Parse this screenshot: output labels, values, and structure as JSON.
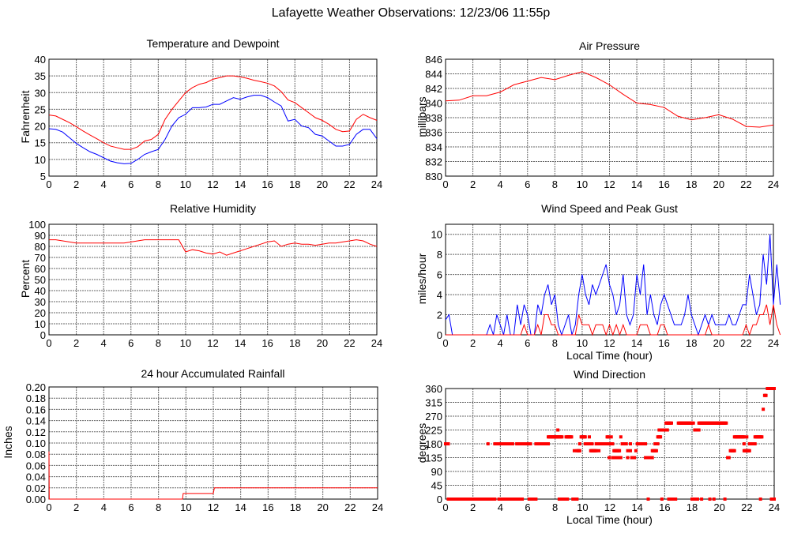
{
  "title": "Lafayette Weather Observations: 12/23/06 11:55p",
  "chart_data": [
    {
      "type": "line",
      "title": "Temperature and Dewpoint",
      "ylabel": "Fahrenheit",
      "xlabel": "",
      "xlim": [
        0,
        24
      ],
      "xticks": [
        0,
        2,
        4,
        6,
        8,
        10,
        12,
        14,
        16,
        18,
        20,
        22,
        24
      ],
      "ylim": [
        5,
        40
      ],
      "yticks": [
        5,
        10,
        15,
        20,
        25,
        30,
        35,
        40
      ],
      "ydecimals": 0,
      "grid": true,
      "x_step_hours": 0.5,
      "series": [
        {
          "color": "#ff0000",
          "values": [
            23.3,
            23,
            22,
            21,
            19.8,
            18.5,
            17.3,
            16.2,
            15,
            14,
            13.5,
            13,
            13,
            13.8,
            15.5,
            16,
            17.5,
            22,
            25,
            27.5,
            30,
            31.5,
            32.5,
            33,
            34,
            34.5,
            35,
            35,
            34.7,
            34.3,
            33.7,
            33.3,
            32.8,
            32,
            30.3,
            27.8,
            27,
            25.5,
            24,
            22.5,
            21.7,
            20.5,
            19,
            18.3,
            18.5,
            22,
            23.5,
            22.5,
            21.7
          ]
        },
        {
          "color": "#0000ff",
          "values": [
            19.2,
            19,
            18.2,
            16.5,
            14.8,
            13.5,
            12.3,
            11.5,
            10.5,
            9.5,
            9,
            8.7,
            8.8,
            10,
            11.5,
            12.3,
            13,
            16,
            20,
            22.5,
            23.5,
            25.5,
            25.5,
            25.7,
            26.5,
            26.5,
            27.5,
            28.5,
            28,
            28.7,
            29.2,
            29.2,
            28.5,
            27.2,
            26,
            21.5,
            22,
            20,
            19.5,
            17.5,
            17,
            15.5,
            14,
            14,
            14.5,
            17.5,
            19,
            19,
            16.2
          ]
        }
      ]
    },
    {
      "type": "line",
      "title": "Air Pressure",
      "ylabel": "millibars",
      "xlabel": "",
      "xlim": [
        0,
        24
      ],
      "xticks": [
        0,
        2,
        4,
        6,
        8,
        10,
        12,
        14,
        16,
        18,
        20,
        22,
        24
      ],
      "ylim": [
        830,
        846
      ],
      "yticks": [
        830,
        832,
        834,
        836,
        838,
        840,
        842,
        844,
        846
      ],
      "ydecimals": 0,
      "grid": true,
      "x_step_hours": 1,
      "series": [
        {
          "color": "#ff0000",
          "values": [
            840.3,
            840.4,
            841,
            841,
            841.5,
            842.5,
            843,
            843.5,
            843.2,
            843.8,
            844.3,
            843.5,
            842.5,
            841.2,
            840,
            839.8,
            839.4,
            838.2,
            837.7,
            838,
            838.4,
            837.8,
            836.8,
            836.7,
            837
          ]
        }
      ]
    },
    {
      "type": "line",
      "title": "Relative Humidity",
      "ylabel": "Percent",
      "xlabel": "",
      "xlim": [
        0,
        24
      ],
      "xticks": [
        0,
        2,
        4,
        6,
        8,
        10,
        12,
        14,
        16,
        18,
        20,
        22,
        24
      ],
      "ylim": [
        0,
        100
      ],
      "yticks": [
        0,
        10,
        20,
        30,
        40,
        50,
        60,
        70,
        80,
        90,
        100
      ],
      "ydecimals": 0,
      "grid": true,
      "x_step_hours": 0.5,
      "series": [
        {
          "color": "#ff0000",
          "values": [
            86,
            86,
            85,
            84,
            83,
            83,
            83,
            83,
            83,
            83,
            83,
            83,
            84,
            85,
            86,
            86,
            86,
            86,
            86,
            86,
            75,
            77,
            76,
            74,
            73,
            75,
            72,
            74,
            76,
            78,
            80,
            82,
            84,
            85,
            80,
            82,
            83,
            82,
            82,
            81,
            82,
            83,
            83,
            84,
            85,
            86,
            85,
            82,
            80
          ]
        }
      ]
    },
    {
      "type": "line",
      "title": "Wind Speed and Peak Gust",
      "ylabel": "miles/hour",
      "xlabel": "Local Time (hour)",
      "xlim": [
        0,
        24
      ],
      "xticks": [
        0,
        2,
        4,
        6,
        8,
        10,
        12,
        14,
        16,
        18,
        20,
        22,
        24
      ],
      "ylim": [
        0,
        11
      ],
      "yticks": [
        0,
        2,
        4,
        6,
        8,
        10
      ],
      "ydecimals": 0,
      "grid": true,
      "x_step_hours": 0.25,
      "series": [
        {
          "color": "#0000ff",
          "values": [
            1.5,
            2,
            0,
            0,
            0,
            0,
            0,
            0,
            0,
            0,
            0,
            0,
            0,
            1,
            0,
            2,
            1,
            0,
            2,
            0,
            0,
            3,
            1,
            3,
            2,
            0,
            0,
            3,
            2,
            4,
            5,
            3,
            4,
            1,
            0,
            1,
            2,
            0,
            1,
            4,
            6,
            4,
            3,
            5,
            4,
            5,
            6,
            7,
            5,
            4,
            2,
            3,
            6,
            2,
            1,
            2,
            6,
            4,
            7,
            2,
            4,
            2,
            1,
            3,
            4,
            3,
            2,
            1,
            1,
            1,
            2,
            4,
            2,
            1,
            0,
            1,
            2,
            1,
            2,
            1,
            1,
            1,
            1,
            2,
            1,
            1,
            2,
            3,
            3,
            6,
            4,
            2,
            3,
            8,
            5,
            10,
            3,
            7,
            3
          ]
        },
        {
          "color": "#ff0000",
          "values": [
            0,
            0,
            0,
            0,
            0,
            0,
            0,
            0,
            0,
            0,
            0,
            0,
            0,
            0,
            0,
            0,
            0,
            0,
            0,
            0,
            0,
            0,
            0,
            1,
            0,
            0,
            0,
            1,
            0,
            2,
            2,
            1,
            1,
            0,
            0,
            0,
            0,
            0,
            0,
            2,
            1,
            1,
            1,
            0,
            1,
            1,
            1,
            0,
            1,
            0,
            1,
            0,
            1,
            0,
            0,
            0,
            0,
            1,
            1,
            1,
            0,
            0,
            0,
            1,
            1,
            0,
            0,
            0,
            0,
            0,
            0,
            0,
            0,
            0,
            0,
            0,
            0,
            1,
            0,
            0,
            0,
            0,
            0,
            0,
            0,
            0,
            0,
            0,
            1,
            0,
            1,
            1,
            2,
            2,
            3,
            1,
            3,
            1,
            0
          ]
        }
      ]
    },
    {
      "type": "line",
      "title": "24 hour Accumulated Rainfall",
      "ylabel": "Inches",
      "xlabel": "",
      "xlim": [
        0,
        24
      ],
      "xticks": [
        0,
        2,
        4,
        6,
        8,
        10,
        12,
        14,
        16,
        18,
        20,
        22,
        24
      ],
      "ylim": [
        0,
        0.2
      ],
      "yticks": [
        0,
        0.02,
        0.04,
        0.06,
        0.08,
        0.1,
        0.12,
        0.14,
        0.16,
        0.18,
        0.2
      ],
      "ydecimals": 2,
      "grid": true,
      "series": [
        {
          "color": "#ff0000",
          "points": [
            [
              0,
              0.085
            ],
            [
              0.02,
              0
            ],
            [
              9.75,
              0
            ],
            [
              9.8,
              0.01
            ],
            [
              12,
              0.01
            ],
            [
              12.08,
              0.02
            ],
            [
              24,
              0.02
            ]
          ]
        }
      ]
    },
    {
      "type": "scatter",
      "title": "Wind Direction",
      "ylabel": "degrees",
      "xlabel": "Local Time (hour)",
      "xlim": [
        0,
        24
      ],
      "xticks": [
        0,
        2,
        4,
        6,
        8,
        10,
        12,
        14,
        16,
        18,
        20,
        22,
        24
      ],
      "ylim": [
        0,
        360
      ],
      "yticks": [
        0,
        45,
        90,
        135,
        180,
        225,
        270,
        315,
        360
      ],
      "ydecimals": 0,
      "grid": true,
      "color": "#ff0000",
      "runs": [
        [
          0,
          0.2,
          180
        ],
        [
          0.2,
          3.6,
          0
        ],
        [
          3.1,
          3.1,
          180
        ],
        [
          3.6,
          4.2,
          180
        ],
        [
          3.9,
          4.3,
          0
        ],
        [
          4.3,
          4.6,
          180
        ],
        [
          4.5,
          4.8,
          0
        ],
        [
          4.7,
          4.9,
          180
        ],
        [
          5.0,
          5.4,
          0
        ],
        [
          5.2,
          5.4,
          180
        ],
        [
          5.4,
          5.6,
          0
        ],
        [
          5.6,
          6.2,
          180
        ],
        [
          6.1,
          6.6,
          0
        ],
        [
          6.6,
          7.5,
          180
        ],
        [
          7.5,
          8.5,
          202.5
        ],
        [
          8.2,
          8.2,
          225
        ],
        [
          8.3,
          8.5,
          0
        ],
        [
          8.6,
          8.9,
          0
        ],
        [
          8.8,
          9.2,
          202.5
        ],
        [
          9.3,
          9.6,
          0
        ],
        [
          9.4,
          9.4,
          157.5
        ],
        [
          9.6,
          9.8,
          157.5
        ],
        [
          9.8,
          9.8,
          180
        ],
        [
          9.9,
          10.2,
          202.5
        ],
        [
          10.2,
          10.7,
          180
        ],
        [
          10.5,
          10.5,
          202.5
        ],
        [
          10.6,
          11.0,
          157.5
        ],
        [
          11.0,
          12.0,
          180
        ],
        [
          11.2,
          11.2,
          157.5
        ],
        [
          11.8,
          11.9,
          202.5
        ],
        [
          11.95,
          11.95,
          135
        ],
        [
          12.1,
          12.1,
          202.5
        ],
        [
          12.0,
          12.2,
          180
        ],
        [
          12.2,
          12.8,
          135
        ],
        [
          12.3,
          12.7,
          157.5
        ],
        [
          12.8,
          12.8,
          202.5
        ],
        [
          12.9,
          13.2,
          180
        ],
        [
          13.3,
          13.3,
          157.5
        ],
        [
          13.3,
          13.3,
          135
        ],
        [
          13.5,
          13.5,
          180
        ],
        [
          13.5,
          13.5,
          157.5
        ],
        [
          13.6,
          13.8,
          135
        ],
        [
          13.9,
          13.9,
          157.5
        ],
        [
          14.0,
          14.6,
          180
        ],
        [
          14.6,
          15.1,
          135
        ],
        [
          14.8,
          14.8,
          0
        ],
        [
          15.1,
          15.4,
          157.5
        ],
        [
          15.3,
          15.5,
          180
        ],
        [
          15.5,
          15.7,
          202.5
        ],
        [
          15.6,
          16.2,
          225
        ],
        [
          15.8,
          15.8,
          0
        ],
        [
          16.1,
          16.5,
          247.5
        ],
        [
          16.3,
          16.8,
          0
        ],
        [
          17.0,
          18.0,
          247.5
        ],
        [
          18.0,
          18.2,
          0
        ],
        [
          18.1,
          18.1,
          247.5
        ],
        [
          18.2,
          18.5,
          225
        ],
        [
          18.4,
          18.4,
          0
        ],
        [
          18.5,
          20.5,
          247.5
        ],
        [
          18.7,
          18.7,
          0
        ],
        [
          19.3,
          19.3,
          0
        ],
        [
          19.6,
          19.6,
          0
        ],
        [
          20.4,
          20.4,
          0
        ],
        [
          20.6,
          20.7,
          135
        ],
        [
          20.8,
          21.1,
          157.5
        ],
        [
          21.1,
          21.8,
          202.5
        ],
        [
          21.8,
          21.8,
          180
        ],
        [
          21.8,
          22.2,
          157.5
        ],
        [
          22.0,
          22.0,
          202.5
        ],
        [
          22.2,
          22.6,
          180
        ],
        [
          22.6,
          23.1,
          202.5
        ],
        [
          23.0,
          23.0,
          0
        ],
        [
          23.2,
          23.2,
          292.5
        ],
        [
          23.3,
          23.4,
          337.5
        ],
        [
          23.5,
          24,
          360
        ],
        [
          23.8,
          24,
          0
        ]
      ]
    }
  ]
}
